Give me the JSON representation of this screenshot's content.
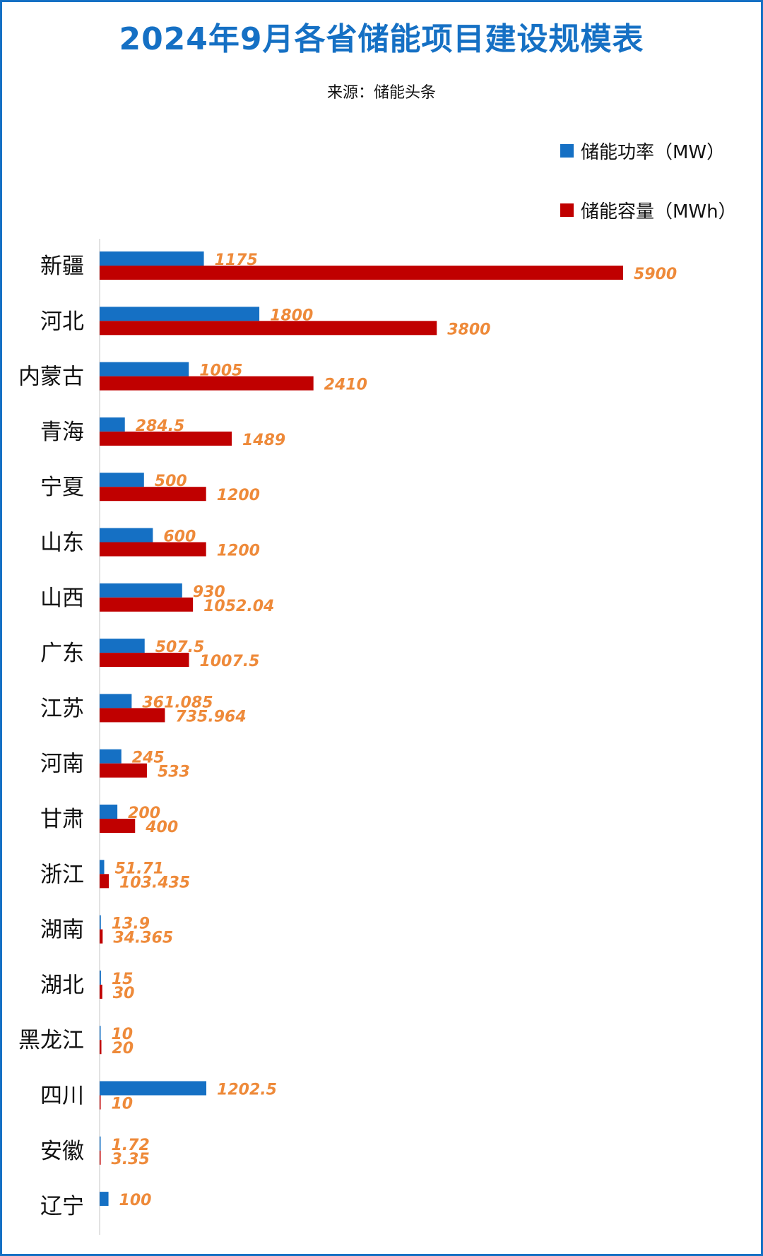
{
  "chart_data": {
    "type": "bar",
    "orientation": "horizontal",
    "title": "2024年9月各省储能项目建设规模表",
    "subtitle": "来源：储能头条",
    "categories": [
      "新疆",
      "河北",
      "内蒙古",
      "青海",
      "宁夏",
      "山东",
      "山西",
      "广东",
      "江苏",
      "河南",
      "甘肃",
      "浙江",
      "湖南",
      "湖北",
      "黑龙江",
      "四川",
      "安徽",
      "辽宁"
    ],
    "series": [
      {
        "name": "储能功率（MW）",
        "color": "#1570c4",
        "values": [
          1175,
          1800,
          1005,
          284.5,
          500,
          600,
          930,
          507.5,
          361.085,
          245,
          200,
          51.71,
          13.9,
          15,
          10,
          1202.5,
          1.72,
          100
        ],
        "labels": [
          "1175",
          "1800",
          "1005",
          "284.5",
          "500",
          "600",
          "930",
          "507.5",
          "361.085",
          "245",
          "200",
          "51.71",
          "13.9",
          "15",
          "10",
          "1202.5",
          "1.72",
          "100"
        ]
      },
      {
        "name": "储能容量（MWh）",
        "color": "#c00000",
        "values": [
          5900,
          3800,
          2410,
          1489,
          1200,
          1200,
          1052.04,
          1007.5,
          735.964,
          533,
          400,
          103.435,
          34.365,
          30,
          20,
          10,
          3.35,
          null
        ],
        "labels": [
          "5900",
          "3800",
          "2410",
          "1489",
          "1200",
          "1200",
          "1052.04",
          "1007.5",
          "735.964",
          "533",
          "400",
          "103.435",
          "34.365",
          "30",
          "20",
          "10",
          "3.35",
          ""
        ]
      }
    ],
    "xlim": [
      0,
      6000
    ],
    "grid": false,
    "legend_position": "top-right",
    "data_label_color": "#ee8a3a"
  }
}
